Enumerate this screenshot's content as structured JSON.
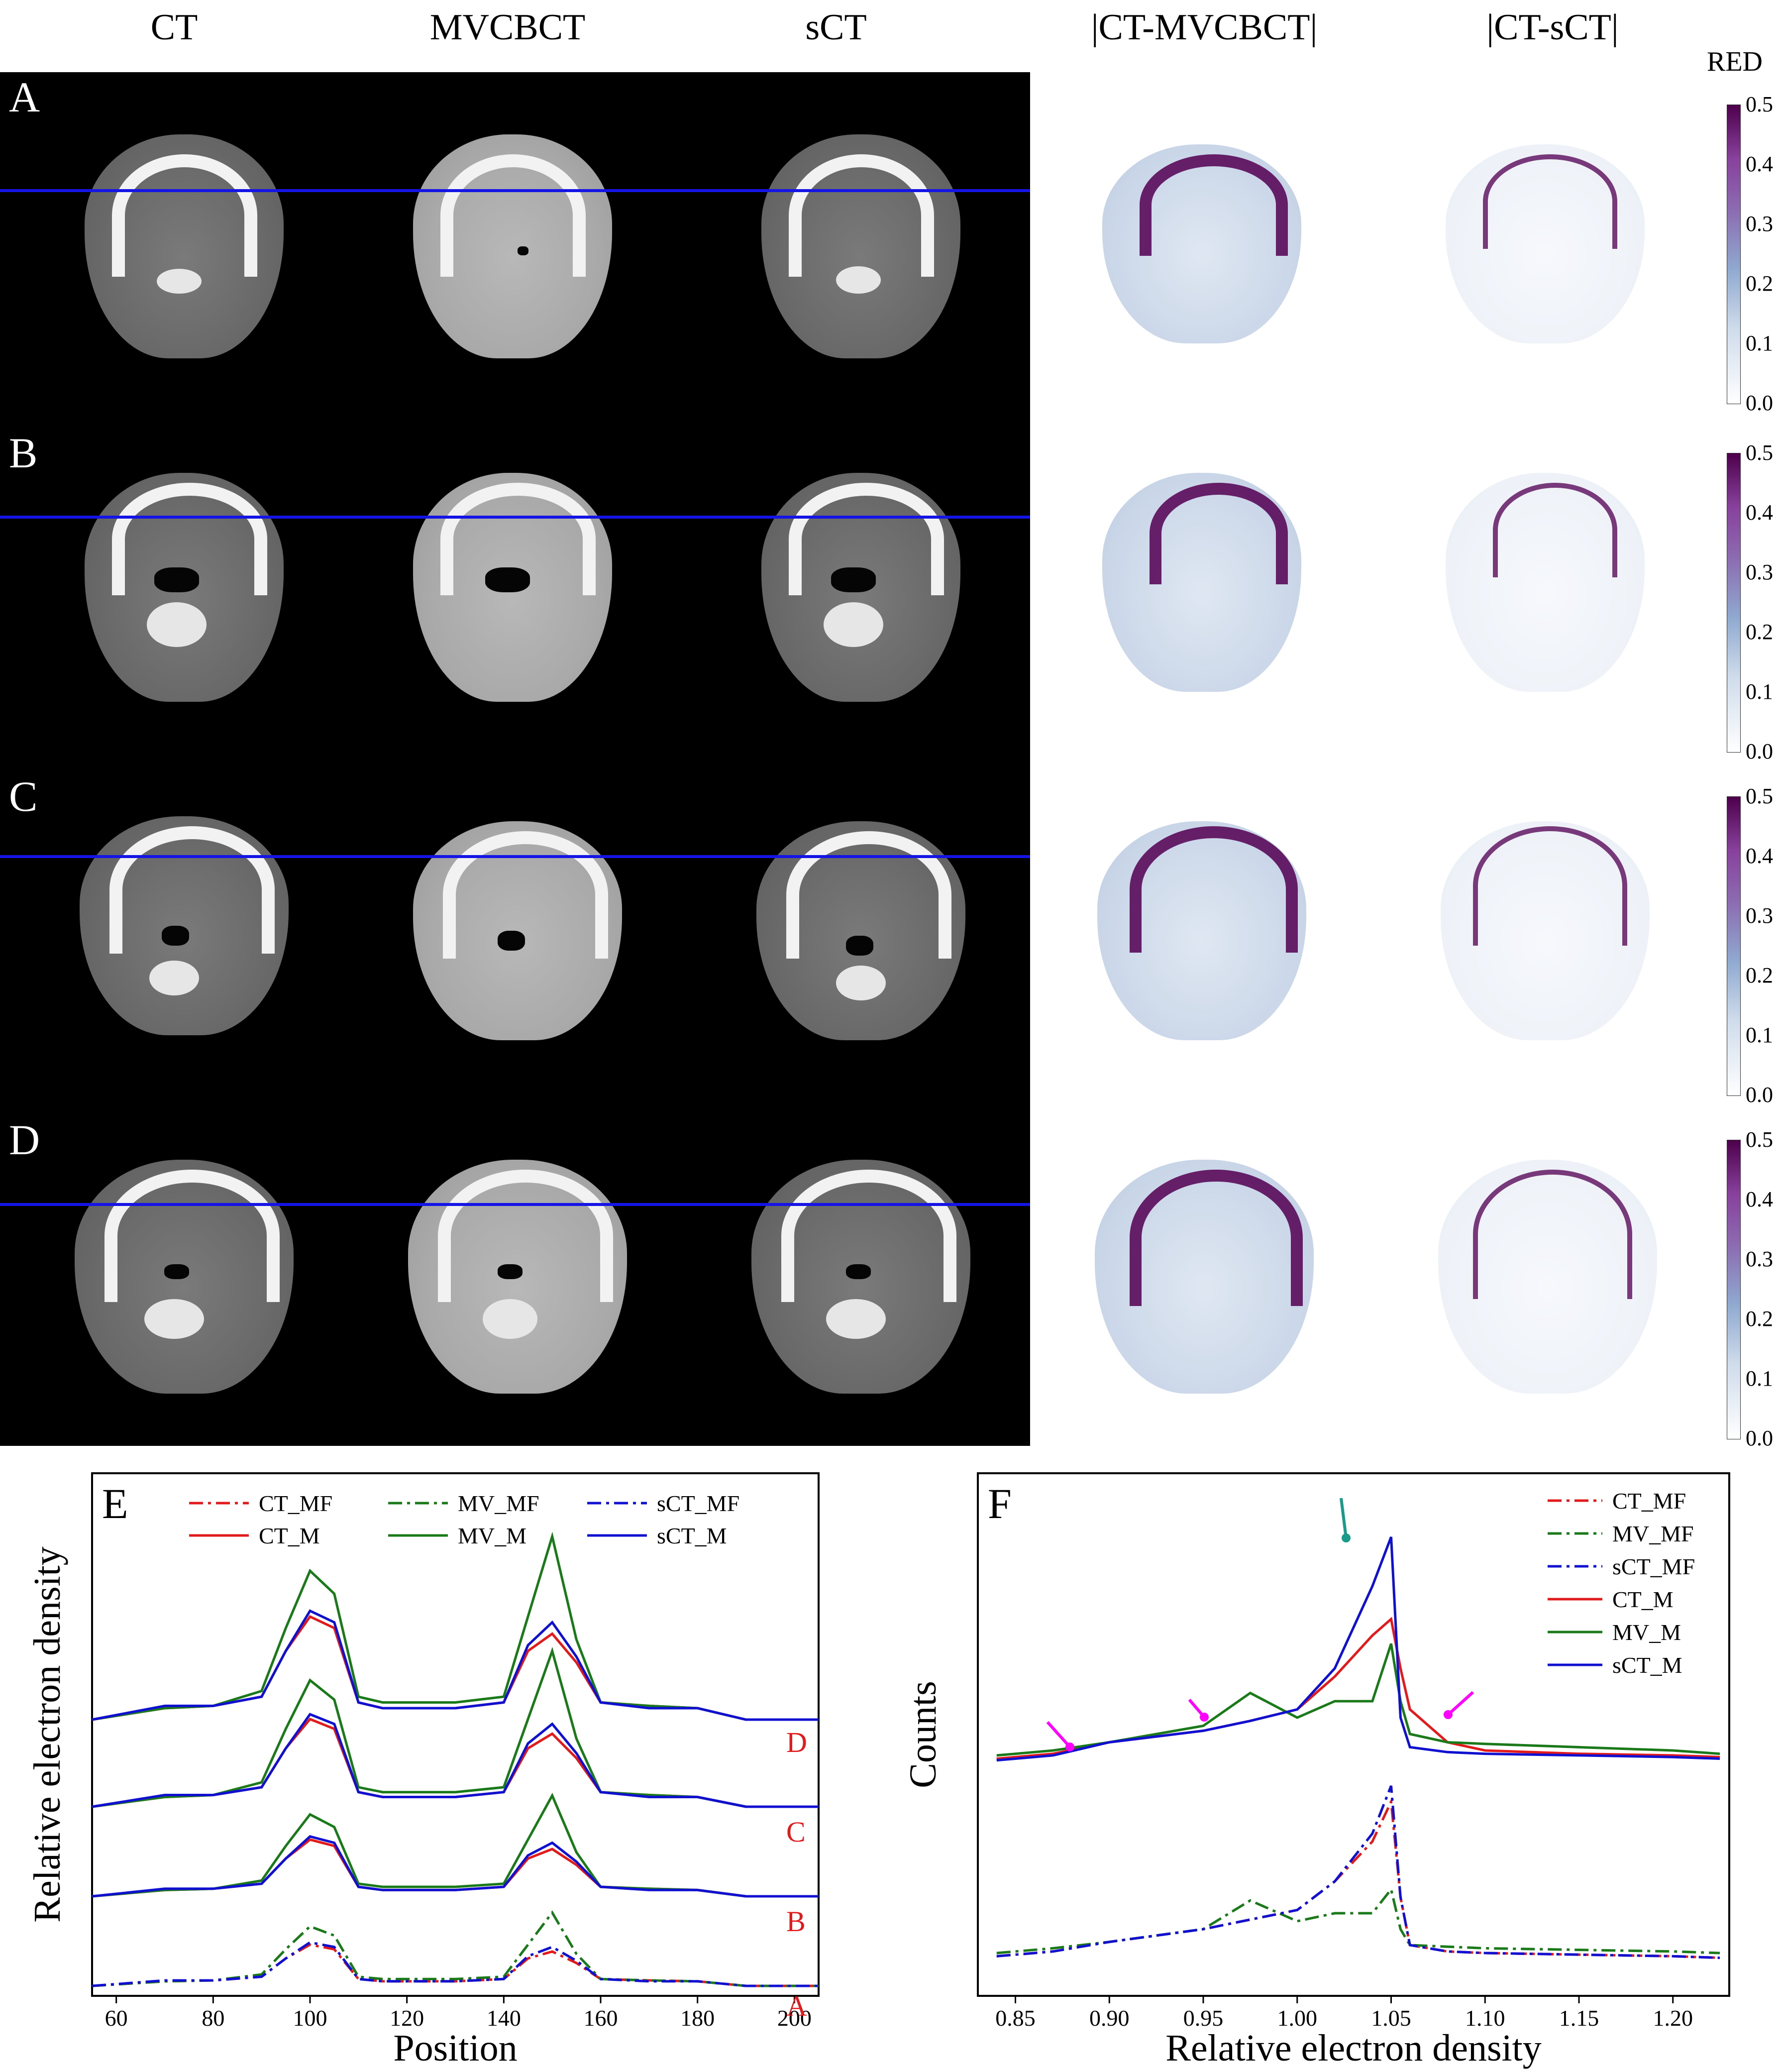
{
  "column_headers": [
    "CT",
    "MVCBCT",
    "sCT",
    "|CT-MVCBCT|",
    "|CT-sCT|"
  ],
  "row_labels": [
    "A",
    "B",
    "C",
    "D"
  ],
  "colorbar": {
    "title": "RED",
    "ticks": [
      "0.5",
      "0.4",
      "0.3",
      "0.2",
      "0.1",
      "0.0"
    ]
  },
  "panel_e": {
    "label": "E",
    "xlabel": "Position",
    "ylabel": "Relative electron density",
    "xticks": [
      "60",
      "80",
      "100",
      "120",
      "140",
      "160",
      "180",
      "200"
    ],
    "legend": [
      "CT_MF",
      "MV_MF",
      "sCT_MF",
      "CT_M",
      "MV_M",
      "sCT_M"
    ],
    "row_tags": [
      "D",
      "C",
      "B",
      "A"
    ]
  },
  "panel_f": {
    "label": "F",
    "xlabel": "Relative electron density",
    "ylabel": "Counts",
    "xticks": [
      "0.85",
      "0.90",
      "0.95",
      "1.00",
      "1.05",
      "1.10",
      "1.15",
      "1.20"
    ],
    "legend": [
      "CT_MF",
      "MV_MF",
      "sCT_MF",
      "CT_M",
      "MV_M",
      "sCT_M"
    ]
  },
  "colors": {
    "ct": "#e31a1c",
    "mv": "#1a7a1a",
    "sct": "#1010d0",
    "arrow_magenta": "#ff00ff",
    "arrow_teal": "#1a9a8a"
  },
  "chart_data": [
    {
      "type": "line",
      "panel": "E",
      "xlabel": "Position",
      "ylabel": "Relative electron density",
      "xlim": [
        55,
        205
      ],
      "x": [
        55,
        70,
        80,
        90,
        95,
        100,
        105,
        110,
        115,
        120,
        130,
        140,
        145,
        150,
        155,
        160,
        170,
        180,
        190,
        200,
        205
      ],
      "series": [
        {
          "name": "CT_M",
          "profile": "D",
          "values": [
            0,
            0.1,
            0.12,
            0.2,
            0.6,
            0.9,
            0.8,
            0.15,
            0.1,
            0.1,
            0.1,
            0.15,
            0.6,
            0.75,
            0.5,
            0.15,
            0.12,
            0.1,
            0,
            0,
            0
          ]
        },
        {
          "name": "MV_M",
          "profile": "D",
          "values": [
            0,
            0.1,
            0.12,
            0.25,
            0.8,
            1.3,
            1.1,
            0.2,
            0.15,
            0.15,
            0.15,
            0.2,
            0.9,
            1.6,
            0.7,
            0.15,
            0.12,
            0.1,
            0,
            0,
            0
          ]
        },
        {
          "name": "sCT_M",
          "profile": "D",
          "values": [
            0,
            0.12,
            0.12,
            0.2,
            0.6,
            0.95,
            0.85,
            0.15,
            0.1,
            0.1,
            0.1,
            0.15,
            0.65,
            0.85,
            0.55,
            0.15,
            0.1,
            0.1,
            0,
            0,
            0
          ]
        }
      ]
    },
    {
      "type": "line",
      "panel": "F",
      "xlabel": "Relative electron density",
      "ylabel": "Counts",
      "xlim": [
        0.83,
        1.23
      ],
      "x": [
        0.84,
        0.87,
        0.9,
        0.95,
        0.975,
        1.0,
        1.02,
        1.04,
        1.05,
        1.055,
        1.06,
        1.08,
        1.1,
        1.15,
        1.2,
        1.225
      ],
      "series": [
        {
          "name": "CT_M",
          "values": [
            0.05,
            0.08,
            0.15,
            0.22,
            0.28,
            0.35,
            0.55,
            0.8,
            0.9,
            0.6,
            0.35,
            0.15,
            0.1,
            0.08,
            0.07,
            0.06
          ]
        },
        {
          "name": "MV_M",
          "values": [
            0.07,
            0.1,
            0.15,
            0.25,
            0.45,
            0.3,
            0.4,
            0.4,
            0.75,
            0.4,
            0.2,
            0.15,
            0.14,
            0.12,
            0.1,
            0.08
          ]
        },
        {
          "name": "sCT_M",
          "values": [
            0.04,
            0.07,
            0.15,
            0.22,
            0.28,
            0.35,
            0.6,
            1.1,
            1.4,
            0.3,
            0.12,
            0.09,
            0.08,
            0.07,
            0.06,
            0.05
          ]
        },
        {
          "name": "CT_MF",
          "values": [
            0.03,
            0.06,
            0.12,
            0.2,
            0.26,
            0.32,
            0.5,
            0.75,
            1.0,
            0.4,
            0.1,
            0.06,
            0.05,
            0.04,
            0.03,
            0.02
          ]
        },
        {
          "name": "MV_MF",
          "values": [
            0.05,
            0.08,
            0.12,
            0.2,
            0.38,
            0.25,
            0.3,
            0.3,
            0.45,
            0.2,
            0.1,
            0.09,
            0.08,
            0.07,
            0.06,
            0.05
          ]
        },
        {
          "name": "sCT_MF",
          "values": [
            0.03,
            0.06,
            0.12,
            0.2,
            0.26,
            0.32,
            0.5,
            0.8,
            1.1,
            0.4,
            0.1,
            0.06,
            0.05,
            0.04,
            0.03,
            0.02
          ]
        }
      ]
    }
  ]
}
